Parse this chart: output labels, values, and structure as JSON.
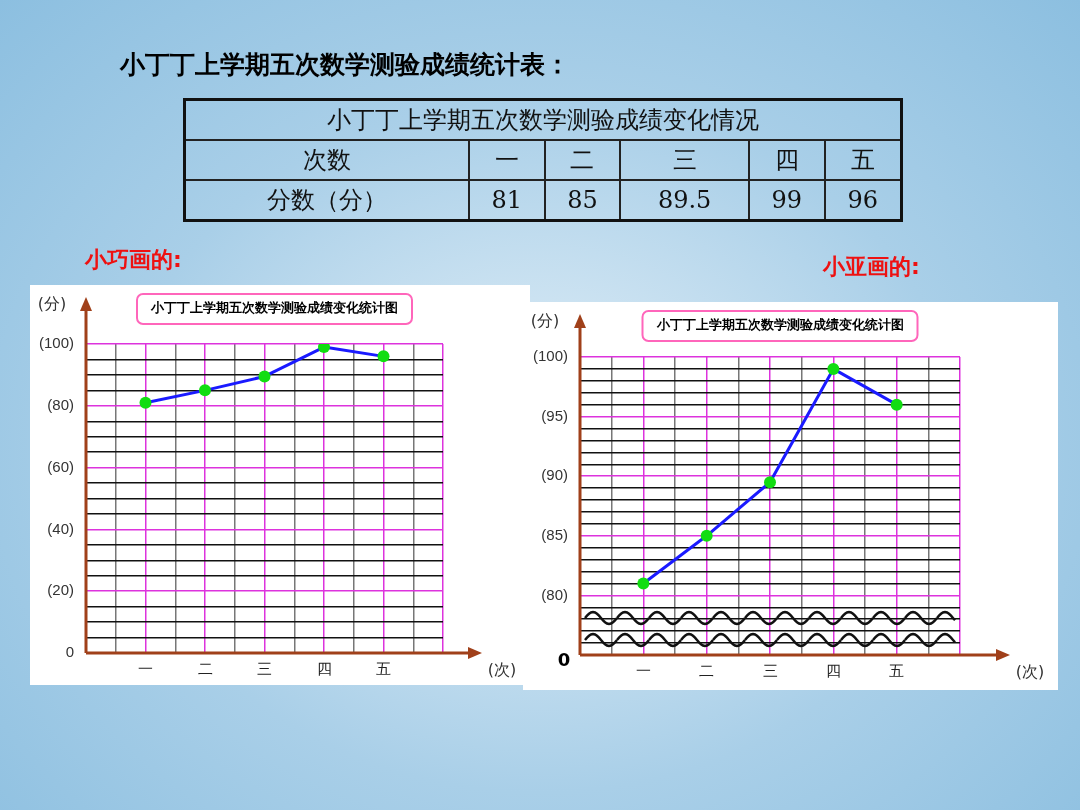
{
  "chart_data": [
    {
      "type": "other",
      "title": "小丁丁上学期五次数学测验成绩统计表：",
      "subtitle": "小丁丁上学期五次数学测验成绩变化情况",
      "xlabel": "次数",
      "ylabel": "分数（分）",
      "categories": [
        "一",
        "二",
        "三",
        "四",
        "五"
      ],
      "values": [
        81,
        85,
        89.5,
        99,
        96
      ],
      "data_labels": true
    },
    {
      "type": "line",
      "title": "小丁丁上学期五次数学测验成绩变化统计图",
      "subtitle": "小巧画的:",
      "xlabel": "(次)",
      "ylabel": "(分)",
      "categories": [
        "一",
        "二",
        "三",
        "四",
        "五"
      ],
      "series": [
        {
          "color": "#1a1aff",
          "colors": [
            "#11dd11",
            "#11dd11",
            "#11dd11",
            "#11dd11",
            "#11dd11"
          ],
          "values": [
            81,
            85,
            89.5,
            99,
            96
          ]
        }
      ],
      "ylim": [
        0,
        100
      ],
      "yticks": [
        {
          "value": 0,
          "label": "0"
        },
        {
          "value": 5,
          "label": null
        },
        {
          "value": 10,
          "label": null
        },
        {
          "value": 15,
          "label": null
        },
        {
          "value": 20,
          "label": "(20)"
        },
        {
          "value": 25,
          "label": null
        },
        {
          "value": 30,
          "label": null
        },
        {
          "value": 35,
          "label": null
        },
        {
          "value": 40,
          "label": "(40)"
        },
        {
          "value": 45,
          "label": null
        },
        {
          "value": 50,
          "label": null
        },
        {
          "value": 55,
          "label": null
        },
        {
          "value": 60,
          "label": "(60)"
        },
        {
          "value": 65,
          "label": null
        },
        {
          "value": 70,
          "label": null
        },
        {
          "value": 75,
          "label": null
        },
        {
          "value": 80,
          "label": "(80)"
        },
        {
          "value": 85,
          "label": null
        },
        {
          "value": 90,
          "label": null
        },
        {
          "value": 95,
          "label": null
        },
        {
          "value": 100,
          "label": "(100)"
        }
      ],
      "grid": true,
      "legend": false,
      "marker": "circle",
      "line_style": "solid"
    },
    {
      "type": "line",
      "title": "小丁丁上学期五次数学测验成绩变化统计图",
      "subtitle": "小亚画的:",
      "xlabel": "(次)",
      "ylabel": "(分)",
      "annotations": [
        "0"
      ],
      "categories": [
        "一",
        "二",
        "三",
        "四",
        "五"
      ],
      "series": [
        {
          "color": "#1a1aff",
          "colors": [
            "#11dd11",
            "#11dd11",
            "#11dd11",
            "#11dd11",
            "#11dd11"
          ],
          "values": [
            81,
            85,
            89.5,
            99,
            96
          ]
        }
      ],
      "ylim": [
        75,
        100
      ],
      "yticks": [
        {
          "value": 76,
          "label": null
        },
        {
          "value": 77,
          "label": null
        },
        {
          "value": 78,
          "label": null
        },
        {
          "value": 79,
          "label": null
        },
        {
          "value": 80,
          "label": "(80)"
        },
        {
          "value": 81,
          "label": null
        },
        {
          "value": 82,
          "label": null
        },
        {
          "value": 83,
          "label": null
        },
        {
          "value": 84,
          "label": null
        },
        {
          "value": 85,
          "label": "(85)"
        },
        {
          "value": 86,
          "label": null
        },
        {
          "value": 87,
          "label": null
        },
        {
          "value": 88,
          "label": null
        },
        {
          "value": 89,
          "label": null
        },
        {
          "value": 90,
          "label": "(90)"
        },
        {
          "value": 91,
          "label": null
        },
        {
          "value": 92,
          "label": null
        },
        {
          "value": 93,
          "label": null
        },
        {
          "value": 94,
          "label": null
        },
        {
          "value": 95,
          "label": "(95)"
        },
        {
          "value": 96,
          "label": null
        },
        {
          "value": 97,
          "label": null
        },
        {
          "value": 98,
          "label": null
        },
        {
          "value": 99,
          "label": null
        },
        {
          "value": 100,
          "label": "(100)"
        }
      ],
      "grid": true,
      "legend": false,
      "marker": "circle",
      "line_style": "solid"
    }
  ]
}
